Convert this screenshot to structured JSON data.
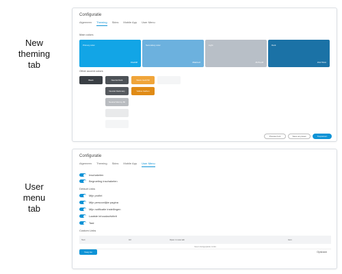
{
  "side_labels": {
    "top": [
      "New",
      "theming",
      "tab"
    ],
    "bottom": [
      "User",
      "menu",
      "tab"
    ]
  },
  "top_panel": {
    "title": "Configuratie",
    "tabs": [
      "Algemeen",
      "Theming",
      "Skins",
      "Mobile App",
      "User Menu"
    ],
    "active_tab": "Theming",
    "main_colors_label": "Main colors",
    "main_colors": [
      {
        "name": "Primary color",
        "hex": "#1abbff",
        "color": "#12a5e6"
      },
      {
        "name": "Secondary color",
        "hex": "#6ab1e0",
        "color": "#6cb1de"
      },
      {
        "name": "Light",
        "hex": "#b7bec8",
        "color": "#b8bfc7"
      },
      {
        "name": "Dark",
        "hex": "#1A7DAA",
        "color": "#1b72a6"
      }
    ],
    "accent_label": "Other accent colors",
    "accents": [
      {
        "name": "Black",
        "color": "#3a3f44"
      },
      {
        "name": "Neutral Dark",
        "color": "#4d5257"
      },
      {
        "name": "Warm Gold 50",
        "color": "#f0a53a"
      },
      {
        "name": "",
        "color": "#f4f5f6"
      },
      {
        "name": "Neutral Darkmary",
        "color": "#55595e"
      },
      {
        "name": "Yellow Carbon",
        "color": "#e08b16"
      },
      {
        "name": "Neutral Warmy 80",
        "color": "#b9bcc0"
      },
      {
        "name": "",
        "color": "#e9eaeb"
      },
      {
        "name": "",
        "color": "#f4f5f6"
      }
    ],
    "buttons": {
      "preview": "Preview font",
      "preset": "Save as preset",
      "apply": "Toepassen"
    }
  },
  "bottom_panel": {
    "title": "Configuratie",
    "tabs": [
      "Algemeen",
      "Theming",
      "Skins",
      "Mobile App",
      "User Menu"
    ],
    "active_tab": "User Menu",
    "toggles_top": [
      "Inschakelen",
      "Begroeting inschakelen"
    ],
    "default_links_label": "Default Links",
    "default_links": [
      "Mijn profiel",
      "Mijn persoonlijke pagina",
      "Mijn notificatie instellingen",
      "Laatste inhoudactiviteit",
      "Taal"
    ],
    "custom_links_label": "Custom Links",
    "table_headers": [
      "Text",
      "Url",
      "Open in new tab",
      "Icon"
    ],
    "empty_text": "Geen Aangepaste Links",
    "add_button": "Voeg toe",
    "save_link": "Opslaan"
  }
}
